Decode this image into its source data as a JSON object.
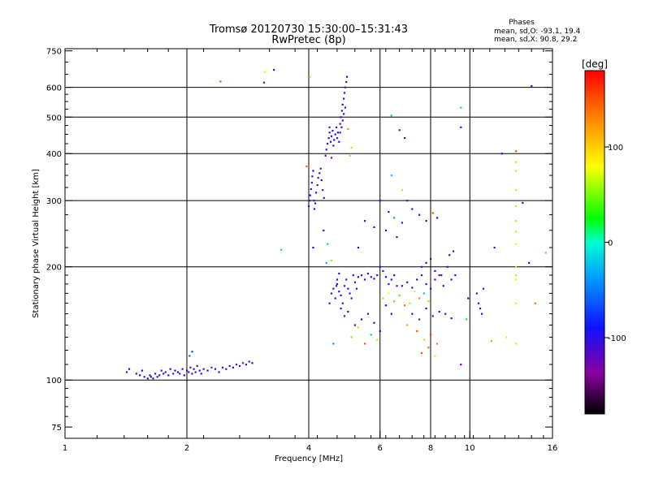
{
  "chart_data": {
    "type": "scatter",
    "title": "Tromsø 20120730 15:30:00–15:31:43",
    "subtitle": "RwPretec (8p)",
    "phases_block": {
      "heading": "Phases",
      "line_o": "mean, sd,O: -93.1, 19.4",
      "line_x": "mean, sd,X:  90.8, 29.2"
    },
    "xlabel": "Frequency [MHz]",
    "ylabel": "Stationary phase Virtual Height [km]",
    "x_scale": "log",
    "y_scale": "log",
    "xlim": [
      1,
      16
    ],
    "ylim": [
      70,
      760
    ],
    "x_ticks": [
      1,
      2,
      4,
      6,
      8,
      10,
      16
    ],
    "y_ticks": [
      75,
      100,
      200,
      300,
      400,
      500,
      600,
      750
    ],
    "grid_x": [
      2,
      4,
      6,
      8,
      10
    ],
    "grid_y": [
      100,
      200,
      300,
      400,
      500,
      600
    ],
    "colorbar": {
      "label": "[deg]",
      "range": [
        -180,
        180
      ],
      "ticks": [
        100,
        0,
        -100
      ]
    },
    "note": "Each point: [frequency MHz, virtual height km, phase deg]",
    "points": [
      [
        1.42,
        105,
        -105
      ],
      [
        1.44,
        107,
        -95
      ],
      [
        1.5,
        104,
        -110
      ],
      [
        1.53,
        103,
        -100
      ],
      [
        1.55,
        106,
        -90
      ],
      [
        1.57,
        102,
        -105
      ],
      [
        1.6,
        101,
        -110
      ],
      [
        1.62,
        103,
        -100
      ],
      [
        1.63,
        102,
        -95
      ],
      [
        1.65,
        101,
        -105
      ],
      [
        1.67,
        104,
        -110
      ],
      [
        1.69,
        102,
        -100
      ],
      [
        1.71,
        103,
        -90
      ],
      [
        1.73,
        106,
        -105
      ],
      [
        1.75,
        104,
        -110
      ],
      [
        1.77,
        105,
        -100
      ],
      [
        1.8,
        103,
        -95
      ],
      [
        1.82,
        107,
        -105
      ],
      [
        1.85,
        104,
        -110
      ],
      [
        1.87,
        106,
        -100
      ],
      [
        1.9,
        105,
        -95
      ],
      [
        1.92,
        104,
        -105
      ],
      [
        1.95,
        107,
        -110
      ],
      [
        1.97,
        103,
        -100
      ],
      [
        2.0,
        106,
        -100
      ],
      [
        2.02,
        105,
        -110
      ],
      [
        2.04,
        108,
        -105
      ],
      [
        2.06,
        104,
        -95
      ],
      [
        2.08,
        107,
        -100
      ],
      [
        2.1,
        105,
        -110
      ],
      [
        2.12,
        109,
        -105
      ],
      [
        2.15,
        106,
        -100
      ],
      [
        2.17,
        104,
        -95
      ],
      [
        2.2,
        107,
        -110
      ],
      [
        2.25,
        106,
        -100
      ],
      [
        2.3,
        108,
        -70
      ],
      [
        2.35,
        107,
        -85
      ],
      [
        2.4,
        105,
        -100
      ],
      [
        2.45,
        108,
        -110
      ],
      [
        2.5,
        107,
        -95
      ],
      [
        2.55,
        109,
        -105
      ],
      [
        2.6,
        108,
        -100
      ],
      [
        2.65,
        110,
        -120
      ],
      [
        2.7,
        109,
        -100
      ],
      [
        2.75,
        111,
        -70
      ],
      [
        2.8,
        110,
        -105
      ],
      [
        2.85,
        112,
        -100
      ],
      [
        2.9,
        111,
        -90
      ],
      [
        2.03,
        116,
        -60
      ],
      [
        2.06,
        119,
        -70
      ],
      [
        2.42,
        622,
        150
      ],
      [
        3.1,
        618,
        -120
      ],
      [
        3.12,
        660,
        70
      ],
      [
        3.28,
        668,
        -100
      ],
      [
        3.42,
        222,
        -20
      ],
      [
        4.02,
        640,
        50
      ],
      [
        3.95,
        370,
        140
      ],
      [
        4.0,
        290,
        -100
      ],
      [
        4.02,
        300,
        -110
      ],
      [
        4.03,
        310,
        -95
      ],
      [
        4.05,
        322,
        -105
      ],
      [
        4.07,
        335,
        -100
      ],
      [
        4.08,
        348,
        -110
      ],
      [
        4.1,
        360,
        -95
      ],
      [
        4.12,
        300,
        -100
      ],
      [
        4.13,
        285,
        -105
      ],
      [
        4.15,
        295,
        -110
      ],
      [
        4.17,
        315,
        -100
      ],
      [
        4.2,
        330,
        -95
      ],
      [
        4.22,
        345,
        -105
      ],
      [
        4.25,
        355,
        -100
      ],
      [
        4.28,
        365,
        -110
      ],
      [
        4.3,
        340,
        -95
      ],
      [
        4.33,
        320,
        -100
      ],
      [
        4.36,
        305,
        -105
      ],
      [
        4.4,
        395,
        -100
      ],
      [
        4.42,
        410,
        -95
      ],
      [
        4.45,
        425,
        -110
      ],
      [
        4.48,
        440,
        -100
      ],
      [
        4.5,
        455,
        -105
      ],
      [
        4.53,
        430,
        -95
      ],
      [
        4.55,
        445,
        -100
      ],
      [
        4.58,
        460,
        -110
      ],
      [
        4.6,
        420,
        -100
      ],
      [
        4.62,
        435,
        -105
      ],
      [
        4.65,
        450,
        -95
      ],
      [
        4.68,
        470,
        -100
      ],
      [
        4.7,
        440,
        -110
      ],
      [
        4.72,
        455,
        -100
      ],
      [
        4.75,
        430,
        -90
      ],
      [
        4.78,
        480,
        -105
      ],
      [
        4.8,
        500,
        -100
      ],
      [
        4.83,
        520,
        -110
      ],
      [
        4.85,
        540,
        -95
      ],
      [
        4.88,
        560,
        -100
      ],
      [
        4.9,
        580,
        -105
      ],
      [
        4.92,
        600,
        -110
      ],
      [
        4.95,
        620,
        -100
      ],
      [
        4.97,
        640,
        -95
      ],
      [
        4.92,
        530,
        -105
      ],
      [
        4.88,
        510,
        -100
      ],
      [
        4.85,
        490,
        -110
      ],
      [
        4.82,
        470,
        -100
      ],
      [
        4.78,
        455,
        -95
      ],
      [
        4.5,
        470,
        -140
      ],
      [
        4.55,
        390,
        -120
      ],
      [
        4.35,
        250,
        -100
      ],
      [
        4.45,
        230,
        -20
      ],
      [
        4.42,
        205,
        -30
      ],
      [
        5.0,
        465,
        130
      ],
      [
        5.1,
        415,
        60
      ],
      [
        4.1,
        225,
        -100
      ],
      [
        4.6,
        125,
        -40
      ],
      [
        4.55,
        208,
        50
      ],
      [
        5.05,
        395,
        50
      ],
      [
        4.5,
        160,
        -100
      ],
      [
        4.55,
        170,
        -95
      ],
      [
        4.6,
        175,
        -105
      ],
      [
        4.65,
        165,
        -100
      ],
      [
        4.7,
        180,
        -110
      ],
      [
        4.75,
        172,
        -100
      ],
      [
        4.8,
        168,
        -95
      ],
      [
        4.85,
        160,
        -105
      ],
      [
        4.9,
        178,
        -100
      ],
      [
        4.95,
        185,
        -110
      ],
      [
        5.0,
        175,
        -100
      ],
      [
        5.05,
        170,
        -95
      ],
      [
        5.1,
        165,
        -105
      ],
      [
        5.15,
        190,
        -100
      ],
      [
        5.2,
        182,
        -110
      ],
      [
        5.25,
        175,
        -100
      ],
      [
        5.3,
        188,
        -95
      ],
      [
        5.4,
        190,
        -105
      ],
      [
        5.5,
        185,
        -100
      ],
      [
        5.6,
        192,
        -110
      ],
      [
        5.7,
        188,
        -100
      ],
      [
        5.8,
        186,
        -95
      ],
      [
        5.9,
        190,
        -105
      ],
      [
        6.0,
        200,
        -100
      ],
      [
        6.1,
        195,
        -110
      ],
      [
        6.2,
        188,
        -100
      ],
      [
        6.3,
        180,
        -95
      ],
      [
        6.4,
        185,
        -105
      ],
      [
        6.5,
        190,
        -100
      ],
      [
        6.6,
        178,
        -110
      ],
      [
        4.8,
        155,
        -100
      ],
      [
        4.9,
        148,
        -140
      ],
      [
        5.0,
        152,
        -90
      ],
      [
        5.2,
        140,
        -120
      ],
      [
        5.4,
        145,
        -100
      ],
      [
        5.6,
        150,
        -110
      ],
      [
        5.8,
        142,
        -100
      ],
      [
        6.0,
        135,
        -90
      ],
      [
        6.2,
        158,
        -100
      ],
      [
        6.4,
        150,
        -105
      ],
      [
        5.1,
        130,
        50
      ],
      [
        5.3,
        138,
        100
      ],
      [
        5.5,
        125,
        150
      ],
      [
        5.7,
        132,
        -30
      ],
      [
        5.9,
        128,
        60
      ],
      [
        6.1,
        165,
        50
      ],
      [
        6.3,
        170,
        80
      ],
      [
        6.5,
        162,
        120
      ],
      [
        6.7,
        168,
        40
      ],
      [
        6.9,
        158,
        140
      ],
      [
        7.1,
        160,
        60
      ],
      [
        7.3,
        172,
        90
      ],
      [
        7.5,
        165,
        130
      ],
      [
        7.7,
        170,
        -20
      ],
      [
        7.9,
        162,
        50
      ],
      [
        6.8,
        178,
        -100
      ],
      [
        7.0,
        182,
        -105
      ],
      [
        7.2,
        176,
        -100
      ],
      [
        7.4,
        185,
        -110
      ],
      [
        7.6,
        190,
        -95
      ],
      [
        7.8,
        180,
        -100
      ],
      [
        8.0,
        175,
        -105
      ],
      [
        8.2,
        185,
        -100
      ],
      [
        8.4,
        190,
        -110
      ],
      [
        8.6,
        178,
        -100
      ],
      [
        7.2,
        150,
        -100
      ],
      [
        7.5,
        145,
        -140
      ],
      [
        7.8,
        155,
        -100
      ],
      [
        8.1,
        148,
        -110
      ],
      [
        8.4,
        152,
        -95
      ],
      [
        8.7,
        150,
        -105
      ],
      [
        9.0,
        146,
        -100
      ],
      [
        7.0,
        140,
        120
      ],
      [
        7.4,
        135,
        150
      ],
      [
        7.7,
        128,
        100
      ],
      [
        8.0,
        132,
        160
      ],
      [
        8.3,
        125,
        130
      ],
      [
        7.6,
        118,
        150
      ],
      [
        7.9,
        122,
        140
      ],
      [
        8.2,
        116,
        90
      ],
      [
        6.0,
        300,
        -110
      ],
      [
        6.3,
        280,
        -100
      ],
      [
        6.5,
        270,
        -40
      ],
      [
        6.8,
        262,
        -100
      ],
      [
        7.0,
        300,
        -110
      ],
      [
        7.2,
        285,
        -100
      ],
      [
        7.5,
        275,
        -105
      ],
      [
        7.8,
        265,
        -100
      ],
      [
        8.1,
        278,
        150
      ],
      [
        8.3,
        270,
        -100
      ],
      [
        5.5,
        265,
        -100
      ],
      [
        5.8,
        255,
        -105
      ],
      [
        6.2,
        250,
        -100
      ],
      [
        6.6,
        240,
        -110
      ],
      [
        5.3,
        225,
        -100
      ],
      [
        6.4,
        350,
        -20
      ],
      [
        6.4,
        505,
        -20
      ],
      [
        6.7,
        462,
        -120
      ],
      [
        6.9,
        440,
        -110
      ],
      [
        6.8,
        320,
        60
      ],
      [
        7.6,
        200,
        -100
      ],
      [
        7.8,
        205,
        -95
      ],
      [
        8.0,
        210,
        -105
      ],
      [
        8.2,
        195,
        -100
      ],
      [
        8.5,
        190,
        -110
      ],
      [
        8.8,
        200,
        -100
      ],
      [
        9.0,
        185,
        -95
      ],
      [
        9.2,
        190,
        -105
      ],
      [
        8.9,
        215,
        -100
      ],
      [
        9.1,
        220,
        -110
      ],
      [
        9.5,
        530,
        -20
      ],
      [
        9.5,
        470,
        -120
      ],
      [
        9.5,
        110,
        -120
      ],
      [
        9.8,
        145,
        20
      ],
      [
        9.9,
        165,
        -100
      ],
      [
        10.5,
        160,
        -100
      ],
      [
        10.6,
        155,
        -110
      ],
      [
        10.7,
        150,
        -100
      ],
      [
        10.8,
        175,
        -100
      ],
      [
        10.4,
        170,
        -110
      ],
      [
        11.5,
        225,
        -100
      ],
      [
        12.0,
        400,
        -100
      ],
      [
        13.0,
        406,
        150
      ],
      [
        13.0,
        380,
        60
      ],
      [
        13.0,
        360,
        60
      ],
      [
        13.0,
        320,
        60
      ],
      [
        13.0,
        290,
        60
      ],
      [
        13.0,
        265,
        60
      ],
      [
        13.0,
        248,
        60
      ],
      [
        13.0,
        230,
        70
      ],
      [
        13.0,
        200,
        60
      ],
      [
        13.0,
        190,
        60
      ],
      [
        13.0,
        185,
        70
      ],
      [
        13.0,
        160,
        90
      ],
      [
        13.0,
        125,
        60
      ],
      [
        13.5,
        296,
        -100
      ],
      [
        14.0,
        205,
        -100
      ],
      [
        14.5,
        160,
        140
      ],
      [
        14.2,
        605,
        -100
      ],
      [
        15.4,
        218,
        120
      ],
      [
        11.3,
        127,
        120
      ],
      [
        12.3,
        130,
        70
      ],
      [
        4.7,
        185,
        -100
      ],
      [
        4.75,
        192,
        -95
      ],
      [
        4.68,
        178,
        -110
      ]
    ]
  }
}
